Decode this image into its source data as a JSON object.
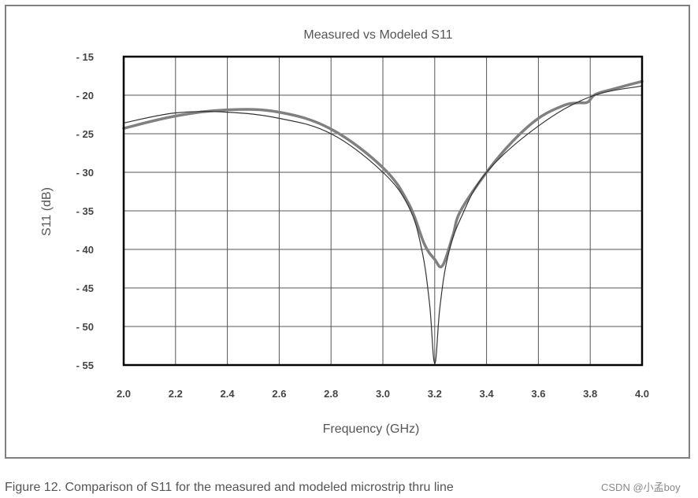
{
  "chart_data": {
    "type": "line",
    "title": "Measured vs Modeled S11",
    "xlabel": "Frequency (GHz)",
    "ylabel": "S11 (dB)",
    "xlim": [
      2.0,
      4.0
    ],
    "ylim": [
      -55,
      -15
    ],
    "x_ticks": [
      "2.0",
      "2.2",
      "2.4",
      "2.6",
      "2.8",
      "3.0",
      "3.2",
      "3.4",
      "3.6",
      "3.8",
      "4.0"
    ],
    "y_ticks": [
      "- 15",
      "- 20",
      "- 25",
      "- 30",
      "- 35",
      "- 40",
      "- 45",
      "- 50",
      "- 55"
    ],
    "grid": true,
    "series": [
      {
        "color": "#808080",
        "width": 3.5,
        "x": [
          2.0,
          2.2,
          2.4,
          2.6,
          2.8,
          3.0,
          3.1,
          3.16,
          3.2,
          3.23,
          3.27,
          3.3,
          3.4,
          3.5,
          3.6,
          3.7,
          3.75,
          3.79,
          3.82,
          3.9,
          4.0
        ],
        "y": [
          -24.3,
          -22.7,
          -21.9,
          -22.2,
          -24.4,
          -29.4,
          -34.1,
          -39.3,
          -41.3,
          -42.1,
          -38.2,
          -35.0,
          -30.0,
          -26.0,
          -23.0,
          -21.3,
          -21.0,
          -20.9,
          -19.9,
          -19.1,
          -18.2
        ]
      },
      {
        "color": "#333333",
        "width": 1.2,
        "x": [
          2.0,
          2.2,
          2.4,
          2.6,
          2.8,
          3.0,
          3.1,
          3.15,
          3.18,
          3.2,
          3.22,
          3.25,
          3.3,
          3.4,
          3.6,
          3.8,
          4.0
        ],
        "y": [
          -23.6,
          -22.3,
          -22.2,
          -23.0,
          -25.0,
          -30.0,
          -34.5,
          -40.0,
          -47.0,
          -54.8,
          -47.5,
          -41.0,
          -36.0,
          -30.0,
          -24.0,
          -20.2,
          -18.8
        ]
      }
    ]
  },
  "caption": "Figure 12. Comparison of S11 for the measured and modeled microstrip thru line",
  "watermark": "CSDN @小孟boy"
}
